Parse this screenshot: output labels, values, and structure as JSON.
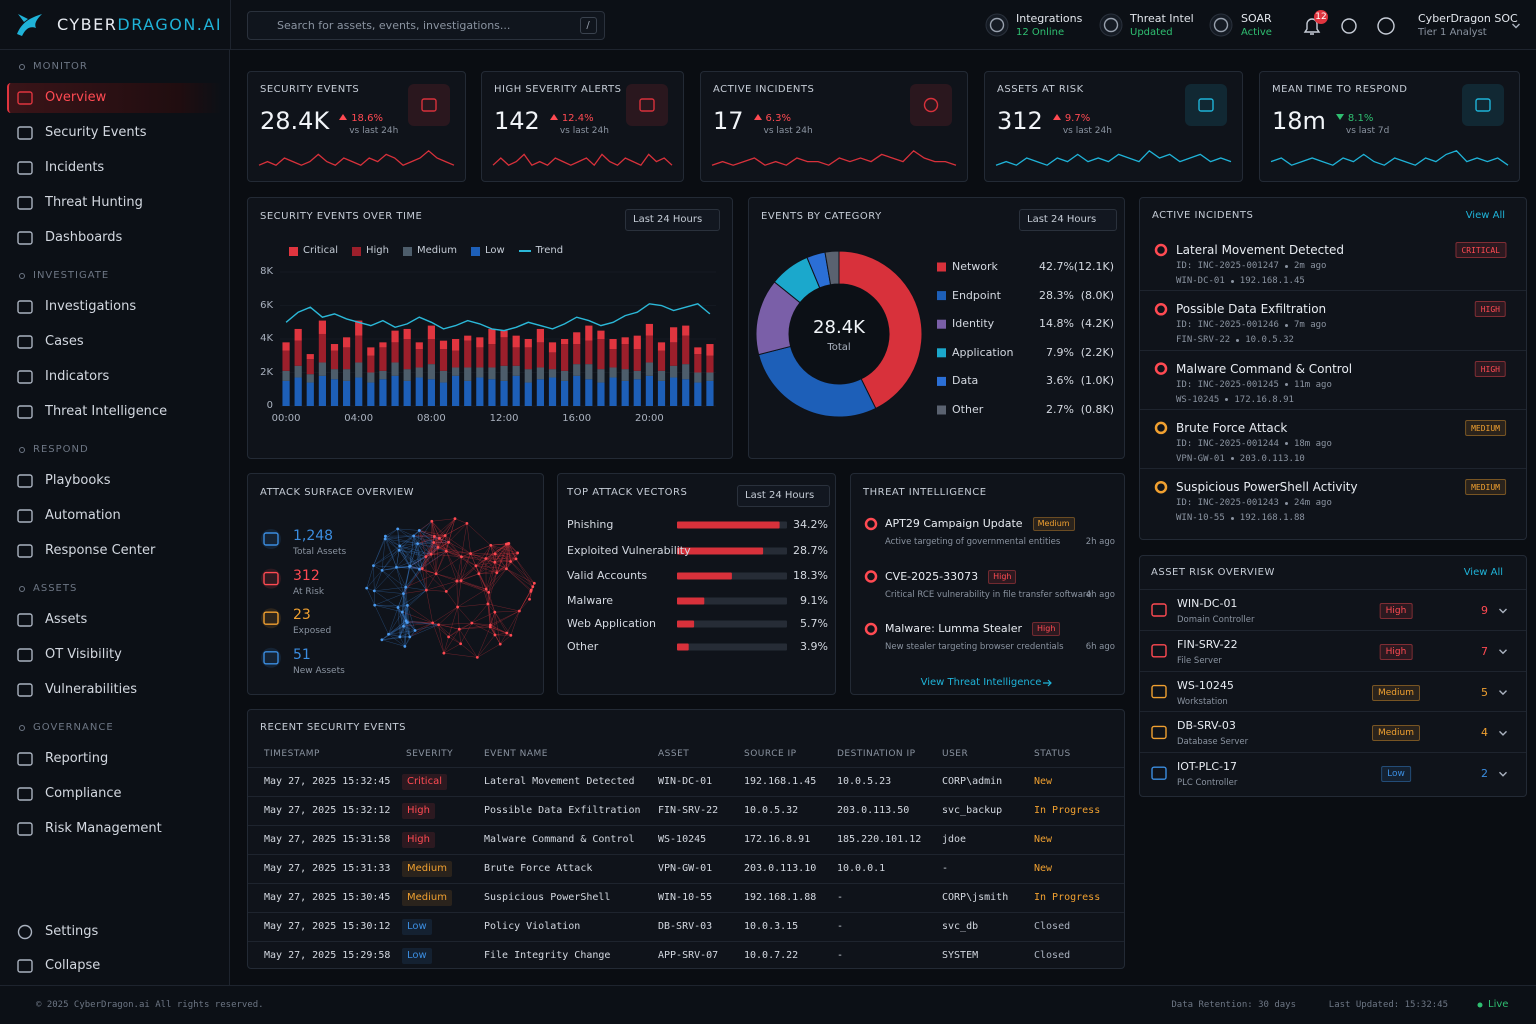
{
  "header": {
    "brand": {
      "prefix": "CYBER",
      "suffix": "DRAGON.AI"
    },
    "search": {
      "placeholder": "Search for assets, events, investigations...",
      "shortcut": "/"
    },
    "status": [
      {
        "label": "Integrations",
        "state": "12 Online"
      },
      {
        "label": "Threat Intel",
        "state": "Updated"
      },
      {
        "label": "SOAR",
        "state": "Active"
      }
    ],
    "notifications": 12,
    "user": {
      "name": "CyberDragon SOC",
      "role": "Tier 1 Analyst"
    }
  },
  "sidebar": {
    "sections": [
      {
        "title": "MONITOR",
        "items": [
          "Overview",
          "Security Events",
          "Incidents",
          "Threat Hunting",
          "Dashboards"
        ]
      },
      {
        "title": "INVESTIGATE",
        "items": [
          "Investigations",
          "Cases",
          "Indicators",
          "Threat Intelligence"
        ]
      },
      {
        "title": "RESPOND",
        "items": [
          "Playbooks",
          "Automation",
          "Response Center"
        ]
      },
      {
        "title": "ASSETS",
        "items": [
          "Assets",
          "OT Visibility",
          "Vulnerabilities"
        ]
      },
      {
        "title": "GOVERNANCE",
        "items": [
          "Reporting",
          "Compliance",
          "Risk Management"
        ]
      }
    ],
    "footer": [
      "Settings",
      "Collapse"
    ]
  },
  "kpis": [
    {
      "title": "SECURITY EVENTS",
      "value": "28.4K",
      "change": "18.6%",
      "trend": "up",
      "period": "vs last 24h",
      "color": "#d8313b",
      "spark": [
        3,
        4,
        3,
        5,
        4,
        3,
        4,
        6,
        4,
        3,
        5,
        4,
        3,
        5,
        4,
        6,
        5,
        3,
        4,
        5,
        7,
        5,
        4,
        3
      ]
    },
    {
      "title": "HIGH SEVERITY ALERTS",
      "value": "142",
      "change": "12.4%",
      "trend": "up",
      "period": "vs last 24h",
      "color": "#d8313b",
      "spark": [
        3,
        5,
        3,
        4,
        6,
        3,
        4,
        3,
        5,
        4,
        3,
        4,
        5,
        3,
        6,
        4,
        3,
        5,
        4,
        3,
        6,
        4,
        5,
        3
      ]
    },
    {
      "title": "ACTIVE INCIDENTS",
      "value": "17",
      "change": "6.3%",
      "trend": "up",
      "period": "vs last 24h",
      "color": "#d8313b",
      "spark": [
        3,
        4,
        3,
        4,
        5,
        3,
        4,
        3,
        5,
        4,
        4,
        3,
        5,
        4,
        5,
        4,
        6,
        5,
        4,
        7,
        5,
        4,
        4,
        3
      ]
    },
    {
      "title": "ASSETS AT RISK",
      "value": "312",
      "change": "9.7%",
      "trend": "up",
      "period": "vs last 24h",
      "color": "#1fb3d8",
      "spark": [
        3,
        4,
        3,
        5,
        4,
        3,
        5,
        4,
        6,
        4,
        5,
        4,
        6,
        5,
        4,
        7,
        5,
        6,
        4,
        5,
        6,
        4,
        5,
        4
      ]
    },
    {
      "title": "MEAN TIME TO RESPOND",
      "value": "18m",
      "change": "8.1%",
      "trend": "down",
      "period": "vs last 7d",
      "color": "#1fb3d8",
      "spark": [
        4,
        5,
        3,
        4,
        5,
        4,
        3,
        5,
        4,
        6,
        4,
        3,
        5,
        4,
        3,
        5,
        4,
        6,
        7,
        4,
        5,
        4,
        5,
        3
      ]
    }
  ],
  "events_over_time": {
    "type": "bar",
    "stacked": true,
    "title": "SECURITY EVENTS OVER TIME",
    "range": "Last 24 Hours",
    "categories": [
      "00:00",
      null,
      null,
      null,
      null,
      null,
      "04:00",
      null,
      null,
      null,
      null,
      null,
      "08:00",
      null,
      null,
      null,
      null,
      null,
      "12:00",
      null,
      null,
      null,
      null,
      null,
      "16:00",
      null,
      null,
      null,
      null,
      null,
      "20:00",
      null,
      null,
      null,
      null,
      null
    ],
    "series": [
      {
        "name": "Critical",
        "color": "#e0353f",
        "values": [
          500,
          700,
          300,
          800,
          400,
          600,
          900,
          500,
          300,
          700,
          600,
          400,
          800,
          500,
          700,
          300,
          600,
          900,
          400,
          700,
          500,
          800,
          600,
          300,
          700,
          900,
          500,
          600,
          400,
          800,
          700,
          500,
          900,
          600,
          400,
          700
        ]
      },
      {
        "name": "High",
        "color": "#9c1f2b",
        "values": [
          1200,
          1500,
          900,
          1700,
          1100,
          1300,
          1600,
          1000,
          1400,
          1200,
          1800,
          1100,
          1500,
          1300,
          1000,
          1600,
          1200,
          1400,
          1700,
          1100,
          1300,
          1500,
          1000,
          1600,
          1200,
          1400,
          1800,
          1100,
          1500,
          1300,
          1600,
          1200,
          1400,
          1700,
          1100,
          1000
        ]
      },
      {
        "name": "Medium",
        "color": "#4d5d6b",
        "values": [
          600,
          700,
          500,
          800,
          600,
          700,
          900,
          600,
          500,
          800,
          700,
          600,
          900,
          700,
          500,
          800,
          600,
          700,
          900,
          600,
          800,
          700,
          500,
          600,
          700,
          900,
          800,
          600,
          700,
          500,
          800,
          600,
          700,
          900,
          600,
          500
        ]
      },
      {
        "name": "Low",
        "color": "#1d5fb8",
        "values": [
          1500,
          1700,
          1400,
          1800,
          1600,
          1500,
          1700,
          1400,
          1600,
          1800,
          1500,
          1700,
          1600,
          1400,
          1800,
          1500,
          1700,
          1600,
          1500,
          1800,
          1400,
          1600,
          1700,
          1500,
          1800,
          1600,
          1400,
          1700,
          1500,
          1600,
          1800,
          1500,
          1700,
          1600,
          1400,
          1500
        ]
      },
      {
        "name": "Trend",
        "type": "line",
        "color": "#2bb8d8",
        "values": [
          5000,
          5600,
          5900,
          5300,
          5500,
          5200,
          5000,
          4800,
          5100,
          4700,
          4900,
          5300,
          5000,
          4600,
          4800,
          5100,
          4900,
          4600,
          4500,
          4700,
          5000,
          4800,
          4600,
          4900,
          5300,
          5100,
          4800,
          5000,
          5400,
          5600,
          6100,
          6000,
          5700,
          5900,
          6100,
          5500
        ]
      }
    ],
    "ylim": [
      0,
      8000
    ],
    "yticks": [
      0,
      {
        "value": 2000,
        "label": "2K"
      },
      {
        "value": 4000,
        "label": "4K"
      },
      {
        "value": 6000,
        "label": "6K"
      },
      {
        "value": 8000,
        "label": "8K"
      }
    ]
  },
  "events_by_category": {
    "type": "donut",
    "title": "EVENTS BY CATEGORY",
    "range": "Last 24 Hours",
    "center_value": "28.4K",
    "center_label": "Total",
    "categories": [
      "Network",
      "Endpoint",
      "Identity",
      "Application",
      "Data",
      "Other"
    ],
    "values": [
      42.7,
      28.3,
      14.8,
      7.9,
      3.6,
      2.7
    ],
    "value_labels": [
      "42.7%",
      "28.3%",
      "14.8%",
      "7.9%",
      "3.6%",
      "2.7%"
    ],
    "counts": [
      "(12.1K)",
      "(8.0K)",
      "(4.2K)",
      "(2.2K)",
      "(1.0K)",
      "(0.8K)"
    ],
    "colors": [
      "#d8313b",
      "#1d5fb8",
      "#7a5fa8",
      "#1ba8cc",
      "#2b6fd6",
      "#5a6270"
    ]
  },
  "active_incidents": {
    "title": "ACTIVE INCIDENTS",
    "link": "View All",
    "items": [
      {
        "title": "Lateral Movement Detected",
        "id": "ID: INC-2025-001247",
        "age": "2m ago",
        "host": "WIN-DC-01",
        "ip": "192.168.1.45",
        "severity": "CRITICAL"
      },
      {
        "title": "Possible Data Exfiltration",
        "id": "ID: INC-2025-001246",
        "age": "7m ago",
        "host": "FIN-SRV-22",
        "ip": "10.0.5.32",
        "severity": "HIGH"
      },
      {
        "title": "Malware Command & Control",
        "id": "ID: INC-2025-001245",
        "age": "11m ago",
        "host": "WS-10245",
        "ip": "172.16.8.91",
        "severity": "HIGH"
      },
      {
        "title": "Brute Force Attack",
        "id": "ID: INC-2025-001244",
        "age": "18m ago",
        "host": "VPN-GW-01",
        "ip": "203.0.113.10",
        "severity": "MEDIUM"
      },
      {
        "title": "Suspicious PowerShell Activity",
        "id": "ID: INC-2025-001243",
        "age": "24m ago",
        "host": "WIN-10-55",
        "ip": "192.168.1.88",
        "severity": "MEDIUM"
      }
    ]
  },
  "attack_surface": {
    "title": "ATTACK SURFACE OVERVIEW",
    "stats": [
      {
        "value": "1,248",
        "label": "Total Assets"
      },
      {
        "value": "312",
        "label": "At Risk"
      },
      {
        "value": "23",
        "label": "Exposed"
      },
      {
        "value": "51",
        "label": "New Assets"
      }
    ]
  },
  "attack_vectors": {
    "type": "bar",
    "orientation": "horizontal",
    "title": "TOP ATTACK VECTORS",
    "range": "Last 24 Hours",
    "color": "#d8313b",
    "categories": [
      "Phishing",
      "Exploited Vulnerability",
      "Valid Accounts",
      "Malware",
      "Web Application",
      "Other"
    ],
    "values": [
      34.2,
      28.7,
      18.3,
      9.1,
      5.7,
      3.9
    ],
    "value_labels": [
      "34.2%",
      "28.7%",
      "18.3%",
      "9.1%",
      "5.7%",
      "3.9%"
    ]
  },
  "threat_intel": {
    "title": "THREAT INTELLIGENCE",
    "link": "View Threat Intelligence",
    "items": [
      {
        "title": "APT29 Campaign Update",
        "badge": "Medium",
        "description": "Active targeting of governmental entities",
        "age": "2h ago"
      },
      {
        "title": "CVE-2025-33073",
        "badge": "High",
        "description": "Critical RCE vulnerability in file transfer software",
        "age": "4h ago"
      },
      {
        "title": "Malware: Lumma Stealer",
        "badge": "High",
        "description": "New stealer targeting browser credentials",
        "age": "6h ago"
      }
    ]
  },
  "asset_risk": {
    "title": "ASSET RISK OVERVIEW",
    "link": "View All",
    "items": [
      {
        "name": "WIN-DC-01",
        "type": "Domain Controller",
        "risk": "High",
        "count": 9
      },
      {
        "name": "FIN-SRV-22",
        "type": "File Server",
        "risk": "High",
        "count": 7
      },
      {
        "name": "WS-10245",
        "type": "Workstation",
        "risk": "Medium",
        "count": 5
      },
      {
        "name": "DB-SRV-03",
        "type": "Database Server",
        "risk": "Medium",
        "count": 4
      },
      {
        "name": "IOT-PLC-17",
        "type": "PLC Controller",
        "risk": "Low",
        "count": 2
      }
    ]
  },
  "recent_events": {
    "title": "RECENT SECURITY EVENTS",
    "columns": [
      "TIMESTAMP",
      "SEVERITY",
      "EVENT NAME",
      "ASSET",
      "SOURCE IP",
      "DESTINATION IP",
      "USER",
      "STATUS"
    ],
    "rows": [
      [
        "May 27, 2025 15:32:45",
        "Critical",
        "Lateral Movement Detected",
        "WIN-DC-01",
        "192.168.1.45",
        "10.0.5.23",
        "CORP\\admin",
        "New"
      ],
      [
        "May 27, 2025 15:32:12",
        "High",
        "Possible Data Exfiltration",
        "FIN-SRV-22",
        "10.0.5.32",
        "203.0.113.50",
        "svc_backup",
        "In Progress"
      ],
      [
        "May 27, 2025 15:31:58",
        "High",
        "Malware Command & Control",
        "WS-10245",
        "172.16.8.91",
        "185.220.101.12",
        "jdoe",
        "New"
      ],
      [
        "May 27, 2025 15:31:33",
        "Medium",
        "Brute Force Attack",
        "VPN-GW-01",
        "203.0.113.10",
        "10.0.0.1",
        "-",
        "New"
      ],
      [
        "May 27, 2025 15:30:45",
        "Medium",
        "Suspicious PowerShell",
        "WIN-10-55",
        "192.168.1.88",
        "-",
        "CORP\\jsmith",
        "In Progress"
      ],
      [
        "May 27, 2025 15:30:12",
        "Low",
        "Policy Violation",
        "DB-SRV-03",
        "10.0.3.15",
        "-",
        "svc_db",
        "Closed"
      ],
      [
        "May 27, 2025 15:29:58",
        "Low",
        "File Integrity Change",
        "APP-SRV-07",
        "10.0.7.22",
        "-",
        "SYSTEM",
        "Closed"
      ]
    ]
  },
  "footer": {
    "copyright": "© 2025 CyberDragon.ai  All rights reserved.",
    "retention": "Data Retention: 30 days",
    "updated": "Last Updated: 15:32:45",
    "live": "Live"
  }
}
